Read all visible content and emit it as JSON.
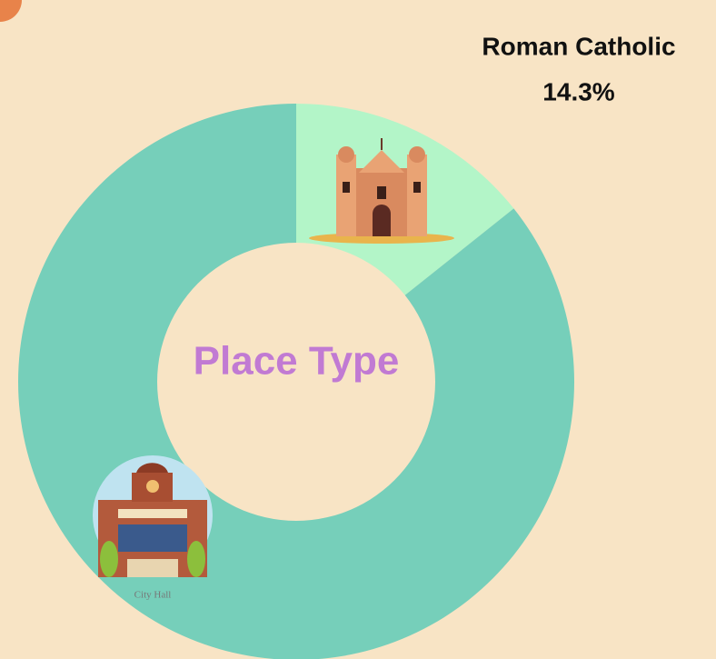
{
  "chart_data": {
    "type": "pie",
    "donut": true,
    "center_label": "Place Type",
    "categories": [
      "Roman Catholic",
      "City Hall"
    ],
    "values": [
      14.3,
      85.7
    ],
    "value_labels": [
      "14.3%",
      null
    ],
    "colors": [
      "#b3f5c8",
      "#76cfba"
    ]
  }
}
